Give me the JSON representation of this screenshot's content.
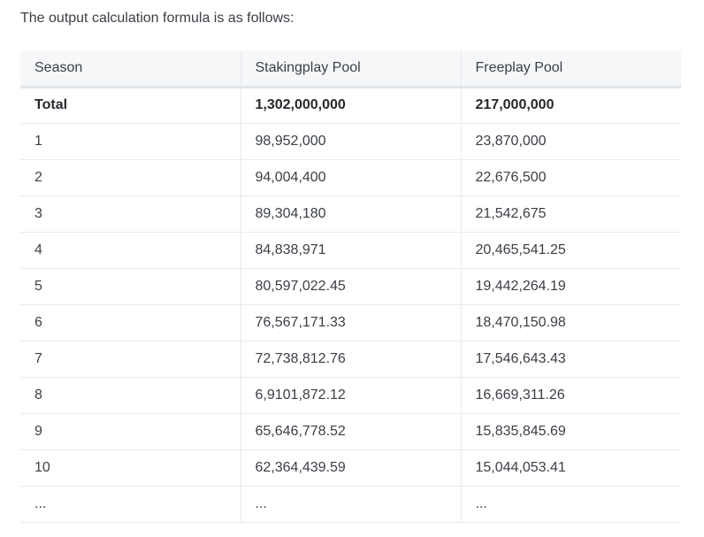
{
  "intro_text": "The output calculation formula is as follows:",
  "table": {
    "headers": [
      "Season",
      "Stakingplay Pool",
      "Freeplay Pool"
    ],
    "rows": [
      [
        "Total",
        "1,302,000,000",
        "217,000,000"
      ],
      [
        "1",
        "98,952,000",
        "23,870,000"
      ],
      [
        "2",
        "94,004,400",
        "22,676,500"
      ],
      [
        "3",
        "89,304,180",
        "21,542,675"
      ],
      [
        "4",
        "84,838,971",
        "20,465,541.25"
      ],
      [
        "5",
        "80,597,022.45",
        "19,442,264.19"
      ],
      [
        "6",
        "76,567,171.33",
        "18,470,150.98"
      ],
      [
        "7",
        "72,738,812.76",
        "17,546,643.43"
      ],
      [
        "8",
        "6,9101,872.12",
        "16,669,311.26"
      ],
      [
        "9",
        "65,646,778.52",
        "15,835,845.69"
      ],
      [
        "10",
        "62,364,439.59",
        "15,044,053.41"
      ],
      [
        "...",
        "...",
        "..."
      ]
    ]
  }
}
